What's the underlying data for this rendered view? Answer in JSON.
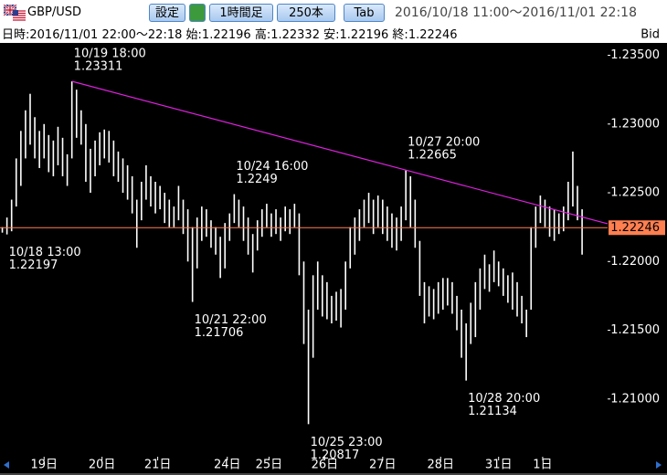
{
  "toolbar": {
    "symbol": "GBP/USD",
    "buttons": [
      "設定",
      "1時間足",
      "250本",
      "Tab"
    ],
    "range": "2016/10/18 11:00～2016/11/01 22:18"
  },
  "chart_data": {
    "type": "hlbar",
    "info": {
      "time_label": "日時:",
      "time": "2016/11/01 22:00～22:18",
      "open_label": "始:",
      "open": 1.22196,
      "high_label": "高:",
      "high": 1.22332,
      "low_label": "安:",
      "low": 1.22196,
      "close_label": "終:",
      "close": 1.22246
    },
    "price_type": "Bid",
    "color": "#ffffff",
    "last_color": "#ff7f50",
    "high": [
      1.2225,
      1.2232,
      1.2245,
      1.2275,
      1.2295,
      1.231,
      1.2322,
      1.2305,
      1.2295,
      1.23,
      1.2292,
      1.2288,
      1.2298,
      1.229,
      1.2278,
      1.23311,
      1.2325,
      1.231,
      1.23,
      1.2282,
      1.2288,
      1.2294,
      1.2296,
      1.2295,
      1.2288,
      1.228,
      1.2275,
      1.227,
      1.2262,
      1.2245,
      1.2258,
      1.227,
      1.2262,
      1.2258,
      1.2255,
      1.225,
      1.2245,
      1.224,
      1.2255,
      1.2245,
      1.2238,
      1.2225,
      1.2232,
      1.224,
      1.2238,
      1.223,
      1.2225,
      1.2218,
      1.2228,
      1.2235,
      1.2249,
      1.2245,
      1.224,
      1.2232,
      1.222,
      1.223,
      1.2238,
      1.2242,
      1.2235,
      1.2238,
      1.2232,
      1.224,
      1.2238,
      1.2242,
      1.2235,
      1.22,
      1.2165,
      1.219,
      1.22,
      1.219,
      1.2185,
      1.2175,
      1.2178,
      1.218,
      1.22,
      1.2225,
      1.2232,
      1.2238,
      1.2245,
      1.225,
      1.2245,
      1.2248,
      1.2245,
      1.224,
      1.2235,
      1.2232,
      1.224,
      1.22665,
      1.2262,
      1.2245,
      1.2215,
      1.2185,
      1.2182,
      1.218,
      1.2185,
      1.2188,
      1.2188,
      1.2185,
      1.2175,
      1.2165,
      1.2155,
      1.217,
      1.2185,
      1.2195,
      1.2205,
      1.2198,
      1.2208,
      1.22,
      1.2195,
      1.219,
      1.2192,
      1.2185,
      1.2175,
      1.2165,
      1.2225,
      1.224,
      1.2248,
      1.2245,
      1.224,
      1.2238,
      1.2235,
      1.224,
      1.2258,
      1.228,
      1.2255,
      1.2238
    ],
    "low": [
      1.2221,
      1.22197,
      1.2222,
      1.224,
      1.2255,
      1.2275,
      1.2285,
      1.2275,
      1.2268,
      1.2275,
      1.2265,
      1.2262,
      1.227,
      1.2262,
      1.2255,
      1.2275,
      1.229,
      1.2285,
      1.2258,
      1.225,
      1.2262,
      1.227,
      1.2275,
      1.2272,
      1.2262,
      1.2258,
      1.225,
      1.2245,
      1.2235,
      1.221,
      1.223,
      1.2245,
      1.224,
      1.2235,
      1.2238,
      1.2228,
      1.2225,
      1.2225,
      1.223,
      1.222,
      1.22,
      1.21706,
      1.2195,
      1.2215,
      1.2218,
      1.221,
      1.2205,
      1.2188,
      1.2195,
      1.2215,
      1.2228,
      1.2225,
      1.2215,
      1.2205,
      1.2192,
      1.2208,
      1.2218,
      1.2225,
      1.2218,
      1.222,
      1.2215,
      1.2222,
      1.222,
      1.2225,
      1.219,
      1.214,
      1.20817,
      1.213,
      1.2165,
      1.216,
      1.2158,
      1.2155,
      1.2157,
      1.2152,
      1.2165,
      1.2195,
      1.2205,
      1.2215,
      1.2225,
      1.2228,
      1.222,
      1.2225,
      1.222,
      1.2215,
      1.221,
      1.2208,
      1.2215,
      1.223,
      1.2225,
      1.221,
      1.2175,
      1.2155,
      1.216,
      1.2158,
      1.2162,
      1.2165,
      1.2168,
      1.2162,
      1.215,
      1.213,
      1.21134,
      1.214,
      1.2145,
      1.2165,
      1.218,
      1.2178,
      1.2185,
      1.2182,
      1.2175,
      1.217,
      1.2165,
      1.216,
      1.2155,
      1.2145,
      1.2165,
      1.221,
      1.2228,
      1.2225,
      1.2218,
      1.2215,
      1.222,
      1.2222,
      1.223,
      1.224,
      1.223,
      1.2205
    ],
    "xlim": [
      -0.5,
      130.5
    ],
    "xticks": [
      {
        "value": 9,
        "label": "19日"
      },
      {
        "value": 21.5,
        "label": "20日"
      },
      {
        "value": 33.5,
        "label": "21日"
      },
      {
        "value": 48.5,
        "label": "24日"
      },
      {
        "value": 57.5,
        "label": "25日"
      },
      {
        "value": 69.5,
        "label": "26日"
      },
      {
        "value": 82,
        "label": "27日"
      },
      {
        "value": 94.5,
        "label": "28日"
      },
      {
        "value": 107,
        "label": "31日"
      },
      {
        "value": 116.5,
        "label": "1日"
      }
    ],
    "ylim": [
      1.2058,
      1.2359
    ],
    "yticks": [
      {
        "value": 1.235,
        "label": "1.23500"
      },
      {
        "value": 1.23,
        "label": "1.23000"
      },
      {
        "value": 1.225,
        "label": "1.22500"
      },
      {
        "value": 1.22,
        "label": "1.22000"
      },
      {
        "value": 1.215,
        "label": "1.21500"
      },
      {
        "value": 1.21,
        "label": "1.21000"
      }
    ],
    "annotations": [
      {
        "x": 1,
        "time": "10/18 13:00",
        "value": 1.22197
      },
      {
        "x": 15,
        "time": "10/19 18:00",
        "value": 1.23311
      },
      {
        "x": 41,
        "time": "10/21 22:00",
        "value": 1.21706
      },
      {
        "x": 50,
        "time": "10/24 16:00",
        "value": 1.2249
      },
      {
        "x": 66,
        "time": "10/25 23:00",
        "value": 1.20817
      },
      {
        "x": 87,
        "time": "10/27 20:00",
        "value": 1.22665
      },
      {
        "x": 100,
        "time": "10/28 20:00",
        "value": 1.21134
      }
    ],
    "trendline": {
      "color": "#e020e0",
      "x": [
        15,
        87
      ],
      "values": [
        1.23311,
        1.22665
      ]
    }
  }
}
